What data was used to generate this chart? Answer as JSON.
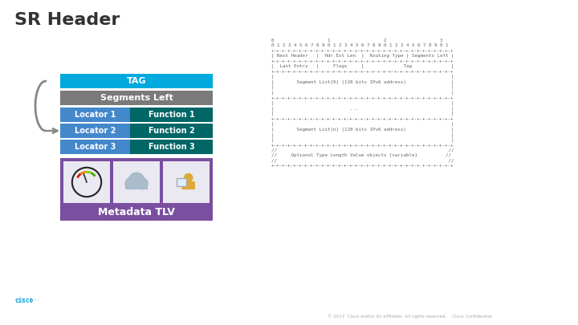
{
  "title": "SR Header",
  "title_color": "#333333",
  "title_fontsize": 16,
  "bg_color": "#ffffff",
  "tag_label": "TAG",
  "tag_color": "#00AADD",
  "tag_text_color": "#ffffff",
  "segleft_label": "Segments Left",
  "segleft_color": "#7a7a7a",
  "segleft_text_color": "#ffffff",
  "rows": [
    {
      "left": "Locator 1",
      "right": "Function 1"
    },
    {
      "left": "Locator 2",
      "right": "Function 2"
    },
    {
      "left": "Locator 3",
      "right": "Function 3"
    }
  ],
  "locator_color": "#4488CC",
  "function_color": "#006666",
  "row_text_color": "#ffffff",
  "metadata_bg": "#7B4FA0",
  "metadata_icon_bg": "#EAE8F0",
  "metadata_label": "Metadata TLV",
  "metadata_text_color": "#ffffff",
  "arrow_color": "#888888",
  "packet_lines": [
    "0                   1                   2                   3",
    "0 1 2 3 4 5 6 7 8 9 0 1 2 3 4 5 6 7 8 9 0 1 2 3 4 5 6 7 8 9 0 1",
    "+-+-+-+-+-+-+-+-+-+-+-+-+-+-+-+-+-+-+-+-+-+-+-+-+-+-+-+-+-+-+-+-+",
    "| Next Header   |  Hdr Ext Len  |  Routing Type | Segments Left |",
    "+-+-+-+-+-+-+-+-+-+-+-+-+-+-+-+-+-+-+-+-+-+-+-+-+-+-+-+-+-+-+-+-+",
    "|  Last Entry   |     Flags     |              Tag              |",
    "+-+-+-+-+-+-+-+-+-+-+-+-+-+-+-+-+-+-+-+-+-+-+-+-+-+-+-+-+-+-+-+-+",
    "|                                                               |",
    "|        Segment List[0] (128 bits IPv6 address)                |",
    "|                                                               |",
    "|                                                               |",
    "+-+-+-+-+-+-+-+-+-+-+-+-+-+-+-+-+-+-+-+-+-+-+-+-+-+-+-+-+-+-+-+-+",
    "|                                                               |",
    "|                           ...                                 |",
    "|                                                               |",
    "+-+-+-+-+-+-+-+-+-+-+-+-+-+-+-+-+-+-+-+-+-+-+-+-+-+-+-+-+-+-+-+-+",
    "|                                                               |",
    "|        Segment List[n] (128 bits IPv6 address)                |",
    "|                                                               |",
    "|                                                               |",
    "+-+-+-+-+-+-+-+-+-+-+-+-+-+-+-+-+-+-+-+-+-+-+-+-+-+-+-+-+-+-+-+-+",
    "//                                                             //",
    "//     Optional Type Length Value objects [variable]          //",
    "//                                                             //",
    "+-+-+-+-+-+-+-+-+-+-+-+-+-+-+-+-+-+-+-+-+-+-+-+-+-+-+-+-+-+-+-+-+"
  ],
  "footer_text": "© 2017  Cisco and/or its affiliates. All rights reserved.    Cisco Confidential",
  "footer_color": "#aaaaaa",
  "cisco_logo_color": "#049fd9"
}
